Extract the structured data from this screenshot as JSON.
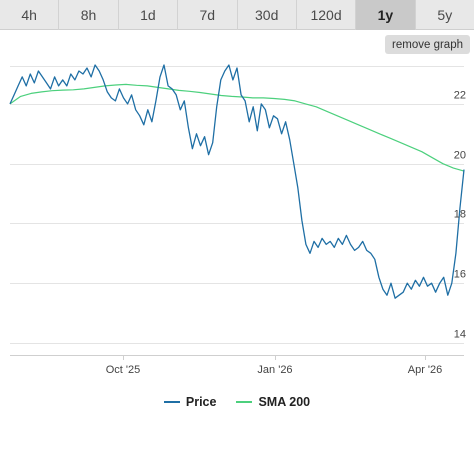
{
  "range_tabs": [
    "4h",
    "8h",
    "1d",
    "7d",
    "30d",
    "120d",
    "1y",
    "5y"
  ],
  "active_tab": "1y",
  "remove_graph_label": "remove graph",
  "colors": {
    "price": "#1f6fa5",
    "sma": "#4cd07d",
    "grid": "#e4e4e4"
  },
  "chart_data": {
    "type": "line",
    "x_tick_labels": [
      "Oct '25",
      "Jan '26",
      "Apr '26"
    ],
    "y_ticks": [
      14,
      16,
      18,
      20,
      22
    ],
    "ylim": [
      13.6,
      23.4
    ],
    "grid": true,
    "legend_position": "bottom",
    "series": [
      {
        "name": "Price",
        "values": [
          22.0,
          22.3,
          22.6,
          22.9,
          22.6,
          23.0,
          22.7,
          23.1,
          22.9,
          22.7,
          22.5,
          22.9,
          22.6,
          22.8,
          22.6,
          23.0,
          22.8,
          23.1,
          23.0,
          23.2,
          22.9,
          23.3,
          23.1,
          22.8,
          22.4,
          22.2,
          22.1,
          22.5,
          22.2,
          22.0,
          22.3,
          21.8,
          21.6,
          21.3,
          21.8,
          21.4,
          22.1,
          22.9,
          23.3,
          22.6,
          22.5,
          22.3,
          21.8,
          22.1,
          21.2,
          20.5,
          21.0,
          20.6,
          20.9,
          20.3,
          20.7,
          21.9,
          22.8,
          23.1,
          23.3,
          22.8,
          23.2,
          22.3,
          22.1,
          21.4,
          21.9,
          21.1,
          22.0,
          21.8,
          21.2,
          21.6,
          21.5,
          21.0,
          21.4,
          20.8,
          20.0,
          19.2,
          18.1,
          17.3,
          17.0,
          17.4,
          17.2,
          17.5,
          17.3,
          17.4,
          17.2,
          17.5,
          17.3,
          17.6,
          17.3,
          17.1,
          17.2,
          17.4,
          17.1,
          17.0,
          16.8,
          16.2,
          15.8,
          15.6,
          16.0,
          15.5,
          15.6,
          15.7,
          16.0,
          15.8,
          16.1,
          15.9,
          16.2,
          15.9,
          16.0,
          15.7,
          16.0,
          16.2,
          15.6,
          16.0,
          17.0,
          18.5,
          19.8
        ]
      },
      {
        "name": "SMA 200",
        "values": [
          22.0,
          22.25,
          22.35,
          22.4,
          22.44,
          22.46,
          22.47,
          22.5,
          22.55,
          22.6,
          22.63,
          22.65,
          22.62,
          22.6,
          22.55,
          22.5,
          22.45,
          22.42,
          22.38,
          22.33,
          22.28,
          22.25,
          22.23,
          22.2,
          22.2,
          22.18,
          22.15,
          22.1,
          22.0,
          21.9,
          21.75,
          21.6,
          21.45,
          21.3,
          21.15,
          21.0,
          20.85,
          20.7,
          20.55,
          20.4,
          20.2,
          20.0,
          19.85,
          19.75
        ]
      }
    ]
  }
}
